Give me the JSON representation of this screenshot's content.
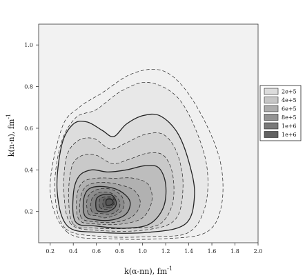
{
  "chart_data": {
    "type": "contour",
    "title": "",
    "xlabel": "k(α-nn), fm",
    "xlabel_exp": "-1",
    "ylabel": "k(n-n), fm",
    "ylabel_exp": "-1",
    "xlim": [
      0.1,
      2.0
    ],
    "ylim": [
      0.05,
      1.1
    ],
    "x_ticks": [
      0.2,
      0.4,
      0.6,
      0.8,
      1.0,
      1.2,
      1.4,
      1.6,
      1.8,
      2.0
    ],
    "x_tick_labels": [
      "0.2",
      "0.4",
      "0.6",
      "0.8",
      "1.0",
      "1.2",
      "1.4",
      "1.6",
      "1.8",
      "2.0"
    ],
    "y_ticks": [
      0.2,
      0.4,
      0.6,
      0.8,
      1.0
    ],
    "y_tick_labels": [
      "0.2",
      "0.4",
      "0.6",
      "0.8",
      "1.0"
    ],
    "grid": false,
    "legend_position": "right",
    "legend": [
      {
        "label": "2e+5",
        "color": "#dcdcdc"
      },
      {
        "label": "4e+5",
        "color": "#c6c6c6"
      },
      {
        "label": "6e+5",
        "color": "#adadad"
      },
      {
        "label": "8e+5",
        "color": "#939393"
      },
      {
        "label": "1e+6",
        "color": "#797979"
      },
      {
        "label": "1e+6",
        "color": "#616161"
      }
    ],
    "peak": {
      "x": 0.72,
      "y": 0.25
    },
    "contour_levels": [
      {
        "fill": "#f0f0f0",
        "solid": false,
        "pts": [
          [
            0.35,
            0.1
          ],
          [
            0.2,
            0.3
          ],
          [
            0.3,
            0.6
          ],
          [
            0.45,
            0.7
          ],
          [
            0.65,
            0.77
          ],
          [
            0.9,
            0.86
          ],
          [
            1.15,
            0.88
          ],
          [
            1.35,
            0.8
          ],
          [
            1.55,
            0.62
          ],
          [
            1.68,
            0.42
          ],
          [
            1.68,
            0.22
          ],
          [
            1.55,
            0.1
          ],
          [
            1.2,
            0.07
          ],
          [
            0.7,
            0.07
          ]
        ]
      },
      {
        "fill": "#e8e8e8",
        "solid": false,
        "pts": [
          [
            0.33,
            0.12
          ],
          [
            0.24,
            0.3
          ],
          [
            0.29,
            0.52
          ],
          [
            0.42,
            0.65
          ],
          [
            0.6,
            0.69
          ],
          [
            0.82,
            0.78
          ],
          [
            1.05,
            0.82
          ],
          [
            1.3,
            0.75
          ],
          [
            1.47,
            0.58
          ],
          [
            1.56,
            0.4
          ],
          [
            1.54,
            0.22
          ],
          [
            1.4,
            0.1
          ],
          [
            1.1,
            0.08
          ],
          [
            0.65,
            0.08
          ]
        ]
      },
      {
        "fill": "#dddddd",
        "solid": true,
        "pts": [
          [
            0.35,
            0.13
          ],
          [
            0.26,
            0.3
          ],
          [
            0.3,
            0.52
          ],
          [
            0.4,
            0.62
          ],
          [
            0.52,
            0.63
          ],
          [
            0.65,
            0.59
          ],
          [
            0.75,
            0.56
          ],
          [
            0.86,
            0.62
          ],
          [
            1.0,
            0.66
          ],
          [
            1.15,
            0.66
          ],
          [
            1.3,
            0.58
          ],
          [
            1.4,
            0.44
          ],
          [
            1.45,
            0.28
          ],
          [
            1.37,
            0.14
          ],
          [
            1.05,
            0.1
          ],
          [
            0.62,
            0.1
          ]
        ]
      },
      {
        "fill": "#d3d3d3",
        "solid": false,
        "pts": [
          [
            0.38,
            0.14
          ],
          [
            0.32,
            0.28
          ],
          [
            0.34,
            0.46
          ],
          [
            0.44,
            0.54
          ],
          [
            0.58,
            0.55
          ],
          [
            0.72,
            0.5
          ],
          [
            0.86,
            0.53
          ],
          [
            1.02,
            0.57
          ],
          [
            1.18,
            0.57
          ],
          [
            1.3,
            0.48
          ],
          [
            1.35,
            0.32
          ],
          [
            1.28,
            0.16
          ],
          [
            1.0,
            0.11
          ],
          [
            0.6,
            0.11
          ]
        ]
      },
      {
        "fill": "#c9c9c9",
        "solid": false,
        "pts": [
          [
            0.4,
            0.14
          ],
          [
            0.36,
            0.28
          ],
          [
            0.39,
            0.42
          ],
          [
            0.48,
            0.47
          ],
          [
            0.6,
            0.47
          ],
          [
            0.74,
            0.43
          ],
          [
            0.88,
            0.45
          ],
          [
            1.04,
            0.48
          ],
          [
            1.18,
            0.47
          ],
          [
            1.26,
            0.38
          ],
          [
            1.26,
            0.24
          ],
          [
            1.15,
            0.14
          ],
          [
            0.92,
            0.12
          ],
          [
            0.6,
            0.12
          ]
        ]
      },
      {
        "fill": "#bdbdbd",
        "solid": true,
        "pts": [
          [
            0.42,
            0.15
          ],
          [
            0.4,
            0.28
          ],
          [
            0.45,
            0.37
          ],
          [
            0.56,
            0.4
          ],
          [
            0.7,
            0.39
          ],
          [
            0.86,
            0.4
          ],
          [
            1.02,
            0.42
          ],
          [
            1.14,
            0.41
          ],
          [
            1.2,
            0.33
          ],
          [
            1.18,
            0.22
          ],
          [
            1.06,
            0.14
          ],
          [
            0.85,
            0.12
          ],
          [
            0.6,
            0.13
          ]
        ]
      },
      {
        "fill": "#b1b1b1",
        "solid": false,
        "pts": [
          [
            0.45,
            0.16
          ],
          [
            0.43,
            0.27
          ],
          [
            0.48,
            0.34
          ],
          [
            0.6,
            0.36
          ],
          [
            0.76,
            0.36
          ],
          [
            0.92,
            0.36
          ],
          [
            1.05,
            0.33
          ],
          [
            1.08,
            0.25
          ],
          [
            1.0,
            0.17
          ],
          [
            0.82,
            0.14
          ],
          [
            0.6,
            0.14
          ]
        ]
      },
      {
        "fill": "#a5a5a5",
        "solid": false,
        "pts": [
          [
            0.47,
            0.17
          ],
          [
            0.46,
            0.26
          ],
          [
            0.51,
            0.32
          ],
          [
            0.63,
            0.34
          ],
          [
            0.79,
            0.33
          ],
          [
            0.93,
            0.3
          ],
          [
            0.98,
            0.24
          ],
          [
            0.92,
            0.18
          ],
          [
            0.78,
            0.15
          ],
          [
            0.6,
            0.15
          ]
        ]
      },
      {
        "fill": "#989898",
        "solid": true,
        "pts": [
          [
            0.5,
            0.18
          ],
          [
            0.49,
            0.26
          ],
          [
            0.54,
            0.31
          ],
          [
            0.66,
            0.32
          ],
          [
            0.8,
            0.3
          ],
          [
            0.89,
            0.25
          ],
          [
            0.86,
            0.19
          ],
          [
            0.74,
            0.16
          ],
          [
            0.6,
            0.16
          ]
        ]
      },
      {
        "fill": "#8c8c8c",
        "solid": false,
        "pts": [
          [
            0.53,
            0.19
          ],
          [
            0.52,
            0.26
          ],
          [
            0.58,
            0.3
          ],
          [
            0.7,
            0.31
          ],
          [
            0.81,
            0.28
          ],
          [
            0.84,
            0.23
          ],
          [
            0.79,
            0.19
          ],
          [
            0.68,
            0.17
          ],
          [
            0.6,
            0.18
          ]
        ]
      },
      {
        "fill": "#808080",
        "solid": false,
        "pts": [
          [
            0.56,
            0.2
          ],
          [
            0.56,
            0.26
          ],
          [
            0.62,
            0.29
          ],
          [
            0.72,
            0.29
          ],
          [
            0.79,
            0.26
          ],
          [
            0.8,
            0.22
          ],
          [
            0.74,
            0.19
          ],
          [
            0.64,
            0.19
          ]
        ]
      },
      {
        "fill": "#757575",
        "solid": true,
        "pts": [
          [
            0.6,
            0.21
          ],
          [
            0.6,
            0.26
          ],
          [
            0.65,
            0.28
          ],
          [
            0.73,
            0.28
          ],
          [
            0.77,
            0.25
          ],
          [
            0.76,
            0.22
          ],
          [
            0.7,
            0.2
          ],
          [
            0.64,
            0.2
          ]
        ]
      },
      {
        "fill": "#6a6a6a",
        "solid": false,
        "pts": [
          [
            0.63,
            0.22
          ],
          [
            0.63,
            0.26
          ],
          [
            0.68,
            0.27
          ],
          [
            0.74,
            0.27
          ],
          [
            0.76,
            0.24
          ],
          [
            0.73,
            0.22
          ],
          [
            0.68,
            0.21
          ]
        ]
      },
      {
        "fill": "#606060",
        "solid": false,
        "pts": [
          [
            0.66,
            0.225
          ],
          [
            0.66,
            0.255
          ],
          [
            0.7,
            0.265
          ],
          [
            0.745,
            0.26
          ],
          [
            0.755,
            0.24
          ],
          [
            0.73,
            0.225
          ],
          [
            0.695,
            0.22
          ]
        ]
      },
      {
        "fill": "#565656",
        "solid": true,
        "pts": [
          [
            0.685,
            0.232
          ],
          [
            0.685,
            0.254
          ],
          [
            0.71,
            0.26
          ],
          [
            0.738,
            0.255
          ],
          [
            0.745,
            0.24
          ],
          [
            0.725,
            0.232
          ],
          [
            0.705,
            0.23
          ]
        ]
      }
    ]
  }
}
